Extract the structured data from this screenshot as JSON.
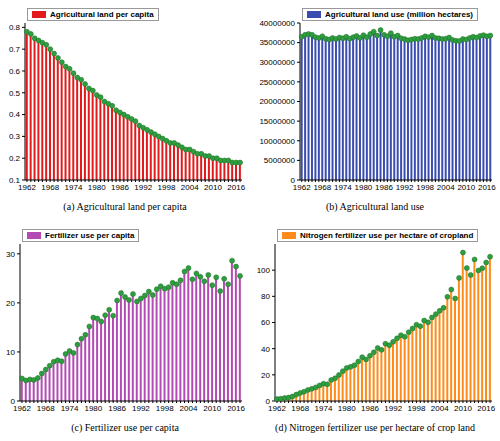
{
  "chart_data": [
    {
      "type": "bar",
      "title": "(a) Agricultural land per capita",
      "categories": [
        "1962",
        null,
        null,
        null,
        null,
        null,
        "1968",
        null,
        null,
        null,
        null,
        null,
        "1974",
        null,
        null,
        null,
        null,
        null,
        "1980",
        null,
        null,
        null,
        null,
        null,
        "1986",
        null,
        null,
        null,
        null,
        null,
        "1992",
        null,
        null,
        null,
        null,
        null,
        "1998",
        null,
        null,
        null,
        null,
        null,
        "2004",
        null,
        null,
        null,
        null,
        null,
        "2010",
        null,
        null,
        null,
        null,
        null,
        "2016",
        null
      ],
      "series": [
        {
          "name": "Agricultural land per capita",
          "color": "#e31a1c",
          "marker": "circle",
          "values": [
            0.78,
            0.77,
            0.75,
            0.74,
            0.73,
            0.72,
            0.7,
            0.68,
            0.66,
            0.64,
            0.62,
            0.61,
            0.59,
            0.57,
            0.56,
            0.54,
            0.52,
            0.51,
            0.49,
            0.48,
            0.46,
            0.45,
            0.44,
            0.42,
            0.41,
            0.4,
            0.39,
            0.38,
            0.37,
            0.35,
            0.34,
            0.33,
            0.32,
            0.31,
            0.3,
            0.29,
            0.28,
            0.27,
            0.27,
            0.26,
            0.25,
            0.24,
            0.24,
            0.23,
            0.22,
            0.22,
            0.21,
            0.21,
            0.2,
            0.2,
            0.19,
            0.19,
            0.19,
            0.18,
            0.18,
            0.18
          ]
        }
      ],
      "ylim": [
        0.1,
        0.82
      ],
      "yticks": [
        0.1,
        0.2,
        0.3,
        0.4,
        0.5,
        0.6,
        0.7,
        0.8
      ],
      "grid": false,
      "legend": "top left"
    },
    {
      "type": "bar",
      "title": "(b) Agricultural land use",
      "categories": [
        "1962",
        null,
        null,
        null,
        null,
        null,
        "1968",
        null,
        null,
        null,
        null,
        null,
        "1974",
        null,
        null,
        null,
        null,
        null,
        "1980",
        null,
        null,
        null,
        null,
        null,
        "1986",
        null,
        null,
        null,
        null,
        null,
        "1992",
        null,
        null,
        null,
        null,
        null,
        "1998",
        null,
        null,
        null,
        null,
        null,
        "2004",
        null,
        null,
        null,
        null,
        null,
        "2010",
        null,
        null,
        null,
        null,
        null,
        "2016",
        null
      ],
      "series": [
        {
          "name": "Agricultural land use (million hectares)",
          "color": "#3a4cb0",
          "marker": "circle",
          "values": [
            36500000,
            37000000,
            37200000,
            37000000,
            36400000,
            36200000,
            36600000,
            36000000,
            35800000,
            36200000,
            35900000,
            36300000,
            36100000,
            36500000,
            36000000,
            36400000,
            36700000,
            36200000,
            36900000,
            36400000,
            37200000,
            37800000,
            36800000,
            38200000,
            37000000,
            36600000,
            37400000,
            36500000,
            36800000,
            36100000,
            35900000,
            35600000,
            35800000,
            36000000,
            35900000,
            36200000,
            36600000,
            36400000,
            36800000,
            36200000,
            36100000,
            35900000,
            36000000,
            36300000,
            35700000,
            35500000,
            35400000,
            35900000,
            35800000,
            36200000,
            36500000,
            36300000,
            36700000,
            36900000,
            36600000,
            36800000
          ]
        }
      ],
      "ylim": [
        0,
        40000000
      ],
      "yticks": [
        0,
        5000000,
        10000000,
        15000000,
        20000000,
        25000000,
        30000000,
        35000000,
        40000000
      ],
      "grid": false,
      "legend": "top left"
    },
    {
      "type": "bar",
      "title": "(c) Fertilizer use per capita",
      "categories": [
        "1962",
        null,
        null,
        null,
        null,
        null,
        "1968",
        null,
        null,
        null,
        null,
        null,
        "1974",
        null,
        null,
        null,
        null,
        null,
        "1980",
        null,
        null,
        null,
        null,
        null,
        "1986",
        null,
        null,
        null,
        null,
        null,
        "1992",
        null,
        null,
        null,
        null,
        null,
        "1998",
        null,
        null,
        null,
        null,
        null,
        "2004",
        null,
        null,
        null,
        null,
        null,
        "2010",
        null,
        null,
        null,
        null,
        null,
        "2016",
        null
      ],
      "series": [
        {
          "name": "Fertilizer use per capita",
          "color": "#b44ab4",
          "marker": "circle",
          "values": [
            4.6,
            4.2,
            4.4,
            4.3,
            4.7,
            5.6,
            6.4,
            7.2,
            8.0,
            8.3,
            8.1,
            9.6,
            10.2,
            9.8,
            11.5,
            12.7,
            13.5,
            15.2,
            17.0,
            16.8,
            16.2,
            17.5,
            18.6,
            17.4,
            20.5,
            22.0,
            21.2,
            20.6,
            21.8,
            20.3,
            20.9,
            21.5,
            22.3,
            21.6,
            22.8,
            23.4,
            22.9,
            23.2,
            24.1,
            23.8,
            24.6,
            26.4,
            27.1,
            24.8,
            26.0,
            25.3,
            24.4,
            25.7,
            23.6,
            25.2,
            22.4,
            24.9,
            23.8,
            28.6,
            27.4,
            25.5
          ]
        }
      ],
      "ylim": [
        0,
        32
      ],
      "yticks": [
        0,
        10,
        20,
        30
      ],
      "grid": false,
      "legend": "top left"
    },
    {
      "type": "bar",
      "title": "(d) Nitrogen fertilizer use per hectare of crop land",
      "categories": [
        "1962",
        null,
        null,
        null,
        null,
        null,
        "1968",
        null,
        null,
        null,
        null,
        null,
        "1974",
        null,
        null,
        null,
        null,
        null,
        "1980",
        null,
        null,
        null,
        null,
        null,
        "1986",
        null,
        null,
        null,
        null,
        null,
        "1992",
        null,
        null,
        null,
        null,
        null,
        "1998",
        null,
        null,
        null,
        null,
        null,
        "2004",
        null,
        null,
        null,
        null,
        null,
        "2010",
        null,
        null,
        null,
        null,
        null,
        "2016",
        null
      ],
      "series": [
        {
          "name": "Nitrogen fertilizer use per hectare of cropland",
          "color": "#ff8c1a",
          "marker": "circle",
          "values": [
            1.5,
            1.8,
            2.3,
            2.6,
            3.4,
            4.9,
            6.2,
            7.1,
            8.5,
            9.3,
            10.4,
            11.9,
            13.2,
            12.8,
            16.1,
            17.4,
            19.9,
            22.8,
            25.3,
            26.1,
            27.4,
            30.2,
            33.5,
            31.8,
            34.6,
            37.2,
            40.5,
            39.1,
            43.8,
            42.6,
            45.2,
            47.9,
            50.3,
            49.1,
            52.6,
            55.4,
            58.3,
            57.2,
            61.5,
            60.1,
            63.8,
            66.4,
            68.9,
            71.3,
            79.6,
            85.2,
            78.4,
            94.1,
            113.5,
            101.6,
            96.3,
            108.2,
            99.8,
            101.5,
            105.9,
            110.3
          ]
        }
      ],
      "ylim": [
        0,
        120
      ],
      "yticks": [
        0,
        20,
        40,
        60,
        80,
        100
      ],
      "grid": false,
      "legend": "top left"
    }
  ]
}
